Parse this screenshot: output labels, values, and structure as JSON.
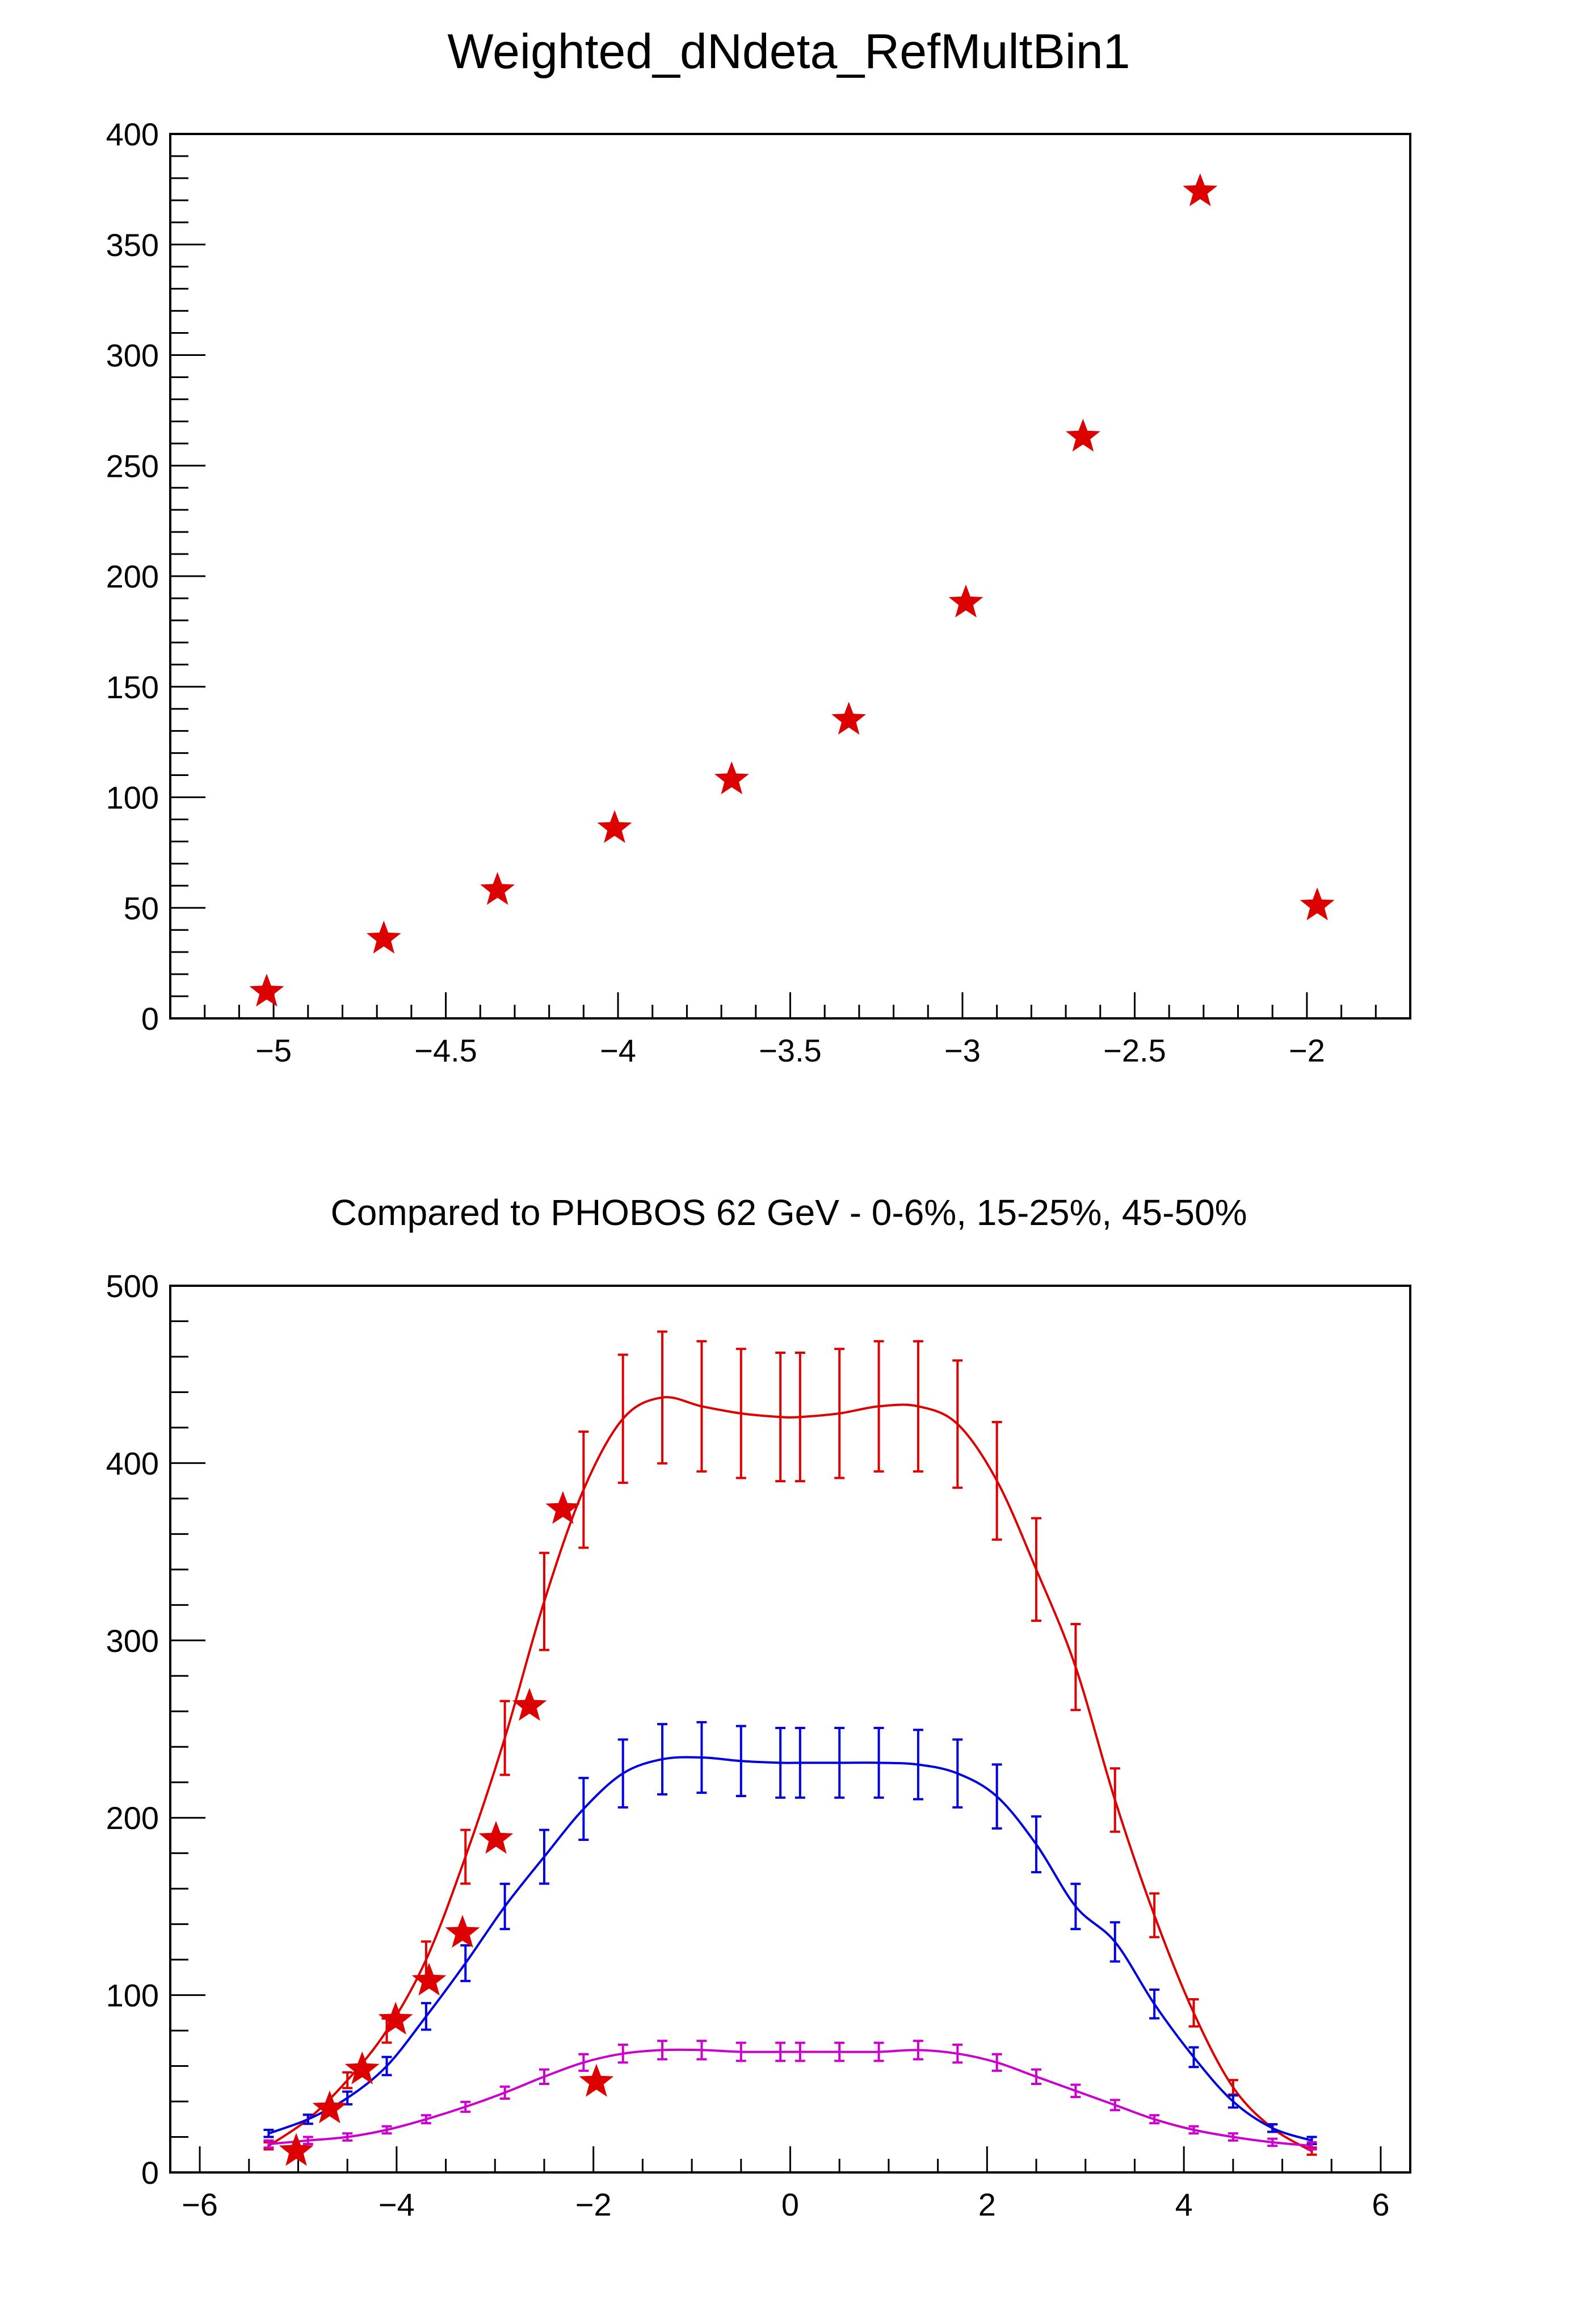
{
  "chart_data": [
    {
      "type": "scatter",
      "title": "Weighted_dNdeta_RefMultBin1",
      "xlabel": "",
      "ylabel": "",
      "xlim": [
        -5.3,
        -1.7
      ],
      "ylim": [
        0,
        400
      ],
      "xticks": [
        "−5",
        "−4.5",
        "−4",
        "−3.5",
        "−3",
        "−2.5",
        "−2"
      ],
      "xtick_values": [
        -5,
        -4.5,
        -4,
        -3.5,
        -3,
        -2.5,
        -2
      ],
      "yticks": [
        "0",
        "50",
        "100",
        "150",
        "200",
        "250",
        "300",
        "350",
        "400"
      ],
      "ytick_values": [
        0,
        50,
        100,
        150,
        200,
        250,
        300,
        350,
        400
      ],
      "grid": false,
      "series": [
        {
          "marker": "star",
          "color": "#dd0000",
          "x": [
            -5.02,
            -4.68,
            -4.35,
            -4.01,
            -3.67,
            -3.33,
            -2.99,
            -2.65,
            -2.31,
            -1.97
          ],
          "y": [
            12,
            36,
            58,
            86,
            108,
            135,
            188,
            263,
            374,
            51
          ]
        }
      ]
    },
    {
      "type": "line",
      "title": "Compared to PHOBOS 62 GeV - 0-6%, 15-25%, 45-50%",
      "xlabel": "",
      "ylabel": "",
      "xlim": [
        -6.3,
        6.3
      ],
      "ylim": [
        0,
        500
      ],
      "xticks": [
        "−6",
        "−4",
        "−2",
        "0",
        "2",
        "4",
        "6"
      ],
      "xtick_values": [
        -6,
        -4,
        -2,
        0,
        2,
        4,
        6
      ],
      "yticks": [
        "0",
        "100",
        "200",
        "300",
        "400",
        "500"
      ],
      "ytick_values": [
        0,
        100,
        200,
        300,
        400,
        500
      ],
      "grid": false,
      "curves": [
        {
          "color": "#dd0000",
          "error_pct": 0.085,
          "x": [
            -5.3,
            -4.9,
            -4.5,
            -4.1,
            -3.7,
            -3.3,
            -2.9,
            -2.5,
            -2.1,
            -1.7,
            -1.3,
            -0.9,
            -0.5,
            -0.1,
            0.1,
            0.5,
            0.9,
            1.3,
            1.7,
            2.1,
            2.5,
            2.9,
            3.3,
            3.7,
            4.1,
            4.5,
            4.9,
            5.3
          ],
          "y": [
            15,
            30,
            52,
            80,
            120,
            178,
            245,
            322,
            385,
            425,
            437,
            432,
            428,
            426,
            426,
            428,
            432,
            432,
            422,
            390,
            340,
            285,
            210,
            145,
            90,
            48,
            25,
            12
          ]
        },
        {
          "color": "#0000dd",
          "error_pct": 0.085,
          "x": [
            -5.3,
            -4.9,
            -4.5,
            -4.1,
            -3.7,
            -3.3,
            -2.9,
            -2.5,
            -2.1,
            -1.7,
            -1.3,
            -0.9,
            -0.5,
            -0.1,
            0.1,
            0.5,
            0.9,
            1.3,
            1.7,
            2.1,
            2.5,
            2.9,
            3.3,
            3.7,
            4.1,
            4.5,
            4.9,
            5.3
          ],
          "y": [
            22,
            30,
            42,
            60,
            88,
            118,
            150,
            178,
            205,
            225,
            233,
            234,
            232,
            231,
            231,
            231,
            231,
            230,
            225,
            212,
            185,
            150,
            130,
            95,
            65,
            40,
            25,
            18
          ]
        },
        {
          "color": "#cc00cc",
          "error_pct": 0.075,
          "x": [
            -5.3,
            -4.9,
            -4.5,
            -4.1,
            -3.7,
            -3.3,
            -2.9,
            -2.5,
            -2.1,
            -1.7,
            -1.3,
            -0.9,
            -0.5,
            -0.1,
            0.1,
            0.5,
            0.9,
            1.3,
            1.7,
            2.1,
            2.5,
            2.9,
            3.3,
            3.7,
            4.1,
            4.5,
            4.9,
            5.3
          ],
          "y": [
            16,
            18,
            20,
            24,
            30,
            37,
            45,
            54,
            62,
            67,
            69,
            69,
            68,
            68,
            68,
            68,
            68,
            69,
            67,
            62,
            54,
            46,
            38,
            30,
            24,
            20,
            17,
            15
          ]
        }
      ],
      "series": [
        {
          "marker": "star",
          "color": "#dd0000",
          "x": [
            -5.02,
            -4.68,
            -4.35,
            -4.01,
            -3.67,
            -3.33,
            -2.99,
            -2.65,
            -2.31,
            -1.97
          ],
          "y": [
            12,
            36,
            58,
            86,
            108,
            135,
            188,
            263,
            374,
            51
          ]
        }
      ]
    }
  ]
}
